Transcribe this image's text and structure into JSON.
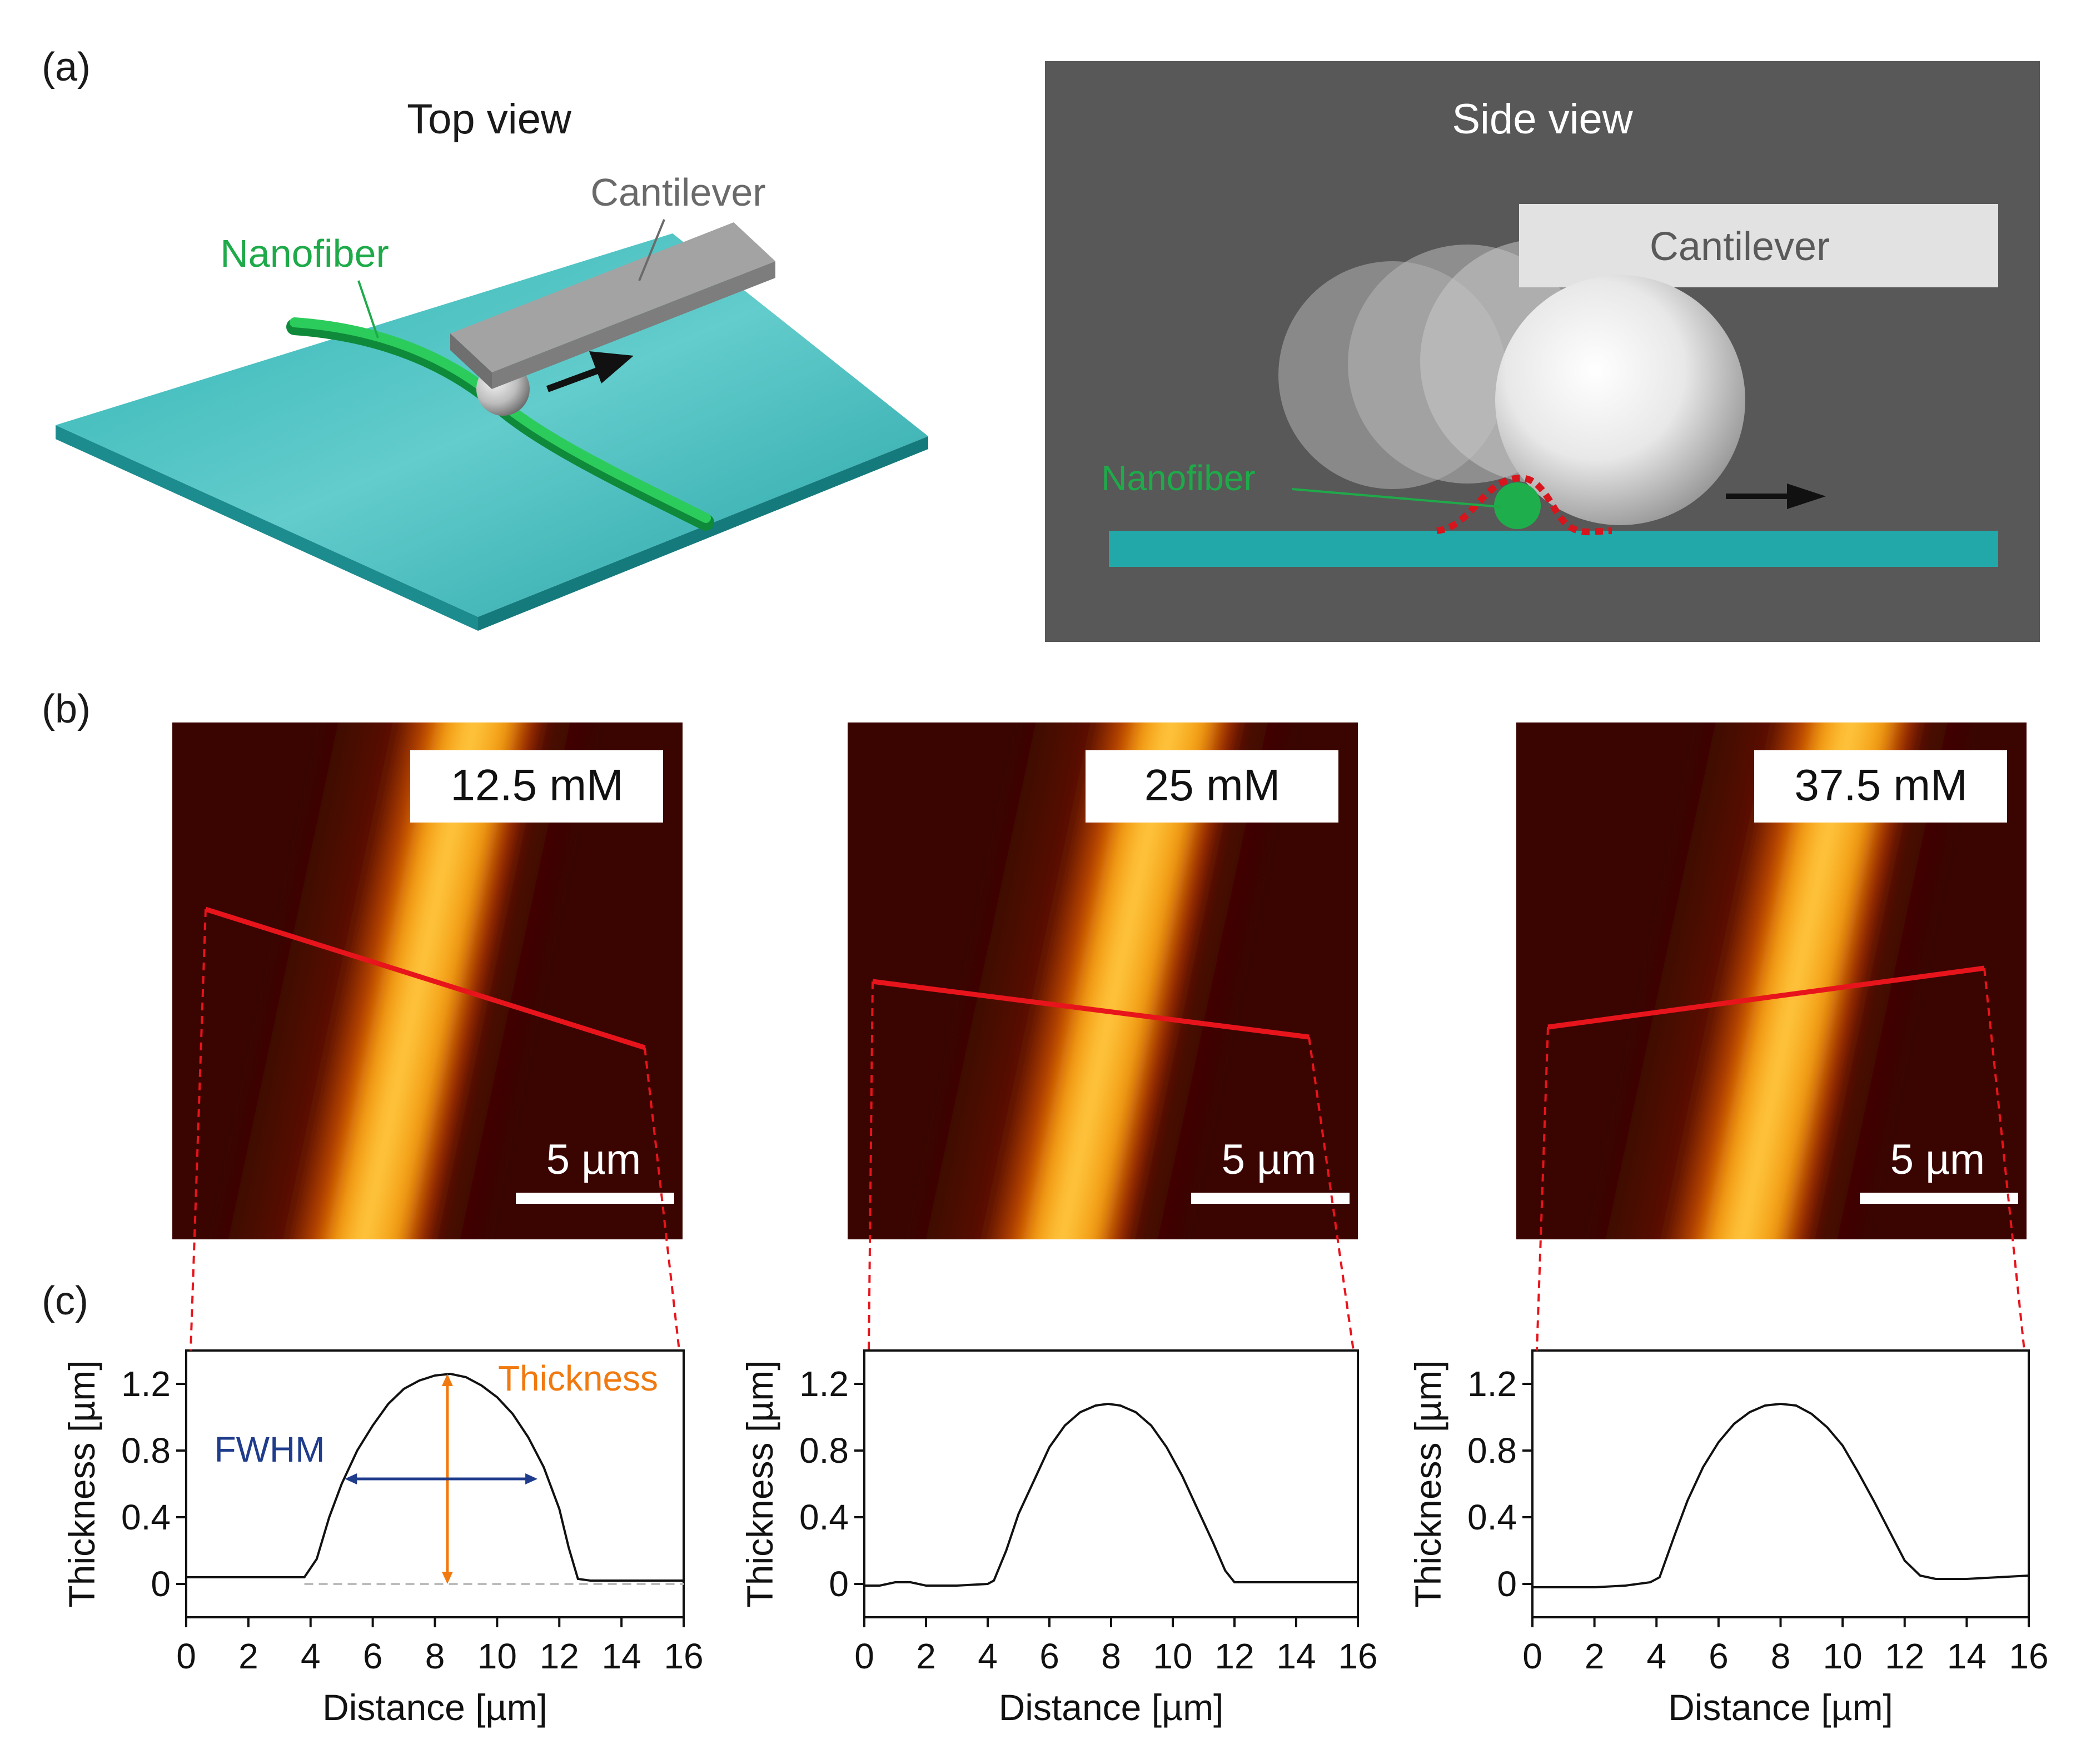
{
  "panel_labels": {
    "a": "(a)",
    "b": "(b)",
    "c": "(c)"
  },
  "panel_a": {
    "top_view": {
      "title": "Top view",
      "cantilever_label": "Cantilever",
      "nanofiber_label": "Nanofiber"
    },
    "side_view": {
      "title": "Side view",
      "cantilever_label": "Cantilever",
      "nanofiber_label": "Nanofiber"
    }
  },
  "panel_b": {
    "images": [
      {
        "concentration": "12.5 mM",
        "scale_bar": "5 µm"
      },
      {
        "concentration": "25 mM",
        "scale_bar": "5 µm"
      },
      {
        "concentration": "37.5 mM",
        "scale_bar": "5 µm"
      }
    ]
  },
  "annotations": {
    "thickness": "Thickness",
    "fwhm": "FWHM"
  },
  "colors": {
    "substrate": "#22a8a8",
    "nanofiber": "#1fae4c",
    "cantilever": "#8c8c8c",
    "side_bg": "#5a5a5a",
    "scan_line": "#e8141c",
    "thickness_arrow": "#f07a10",
    "fwhm_arrow": "#1f3c8c"
  },
  "chart_data": [
    {
      "type": "line",
      "title": "12.5 mM",
      "xlabel": "Distance [µm]",
      "ylabel": "Thickness [µm]",
      "xlim": [
        0,
        16
      ],
      "ylim": [
        -0.2,
        1.4
      ],
      "xticks": [
        "0",
        "2",
        "4",
        "6",
        "8",
        "10",
        "12",
        "14",
        "16"
      ],
      "yticks": [
        "0",
        "0.4",
        "0.8",
        "1.2"
      ],
      "x": [
        0,
        1,
        2,
        3,
        3.8,
        4.2,
        4.6,
        5,
        5.5,
        6,
        6.5,
        7,
        7.5,
        8,
        8.5,
        9,
        9.5,
        10,
        10.5,
        11,
        11.5,
        12,
        12.3,
        12.6,
        13,
        14,
        15,
        16
      ],
      "y": [
        0.04,
        0.04,
        0.04,
        0.04,
        0.04,
        0.15,
        0.4,
        0.6,
        0.8,
        0.95,
        1.08,
        1.17,
        1.22,
        1.25,
        1.26,
        1.24,
        1.19,
        1.12,
        1.02,
        0.88,
        0.7,
        0.45,
        0.22,
        0.03,
        0.02,
        0.02,
        0.02,
        0.02
      ],
      "peak": {
        "x": 8.4,
        "y": 1.26
      },
      "fwhm": {
        "x_start": 5.1,
        "x_end": 11.3,
        "y": 0.63
      }
    },
    {
      "type": "line",
      "title": "25 mM",
      "xlabel": "Distance [µm]",
      "ylabel": "Thickness [µm]",
      "xlim": [
        0,
        16
      ],
      "ylim": [
        -0.2,
        1.4
      ],
      "xticks": [
        "0",
        "2",
        "4",
        "6",
        "8",
        "10",
        "12",
        "14",
        "16"
      ],
      "yticks": [
        "0",
        "0.4",
        "0.8",
        "1.2"
      ],
      "x": [
        0,
        0.5,
        1,
        1.5,
        2,
        3,
        4,
        4.2,
        4.6,
        5,
        5.5,
        6,
        6.5,
        7,
        7.5,
        7.9,
        8.3,
        8.8,
        9.3,
        9.8,
        10.3,
        10.8,
        11.3,
        11.7,
        12,
        13,
        14,
        15,
        16
      ],
      "y": [
        -0.01,
        -0.01,
        0.01,
        0.01,
        -0.01,
        -0.01,
        0,
        0.02,
        0.2,
        0.42,
        0.62,
        0.82,
        0.95,
        1.03,
        1.07,
        1.08,
        1.07,
        1.03,
        0.95,
        0.82,
        0.65,
        0.45,
        0.25,
        0.08,
        0.01,
        0.01,
        0.01,
        0.01,
        0.01
      ]
    },
    {
      "type": "line",
      "title": "37.5 mM",
      "xlabel": "Distance [µm]",
      "ylabel": "Thickness [µm]",
      "xlim": [
        0,
        16
      ],
      "ylim": [
        -0.2,
        1.4
      ],
      "xticks": [
        "0",
        "2",
        "4",
        "6",
        "8",
        "10",
        "12",
        "14",
        "16"
      ],
      "yticks": [
        "0",
        "0.4",
        "0.8",
        "1.2"
      ],
      "x": [
        0,
        1,
        2,
        3,
        3.8,
        4.1,
        4.6,
        5,
        5.5,
        6,
        6.5,
        7,
        7.5,
        8,
        8.5,
        9,
        9.5,
        10,
        10.5,
        11,
        11.5,
        12,
        12.5,
        13,
        14,
        15,
        16
      ],
      "y": [
        -0.02,
        -0.02,
        -0.02,
        -0.01,
        0.01,
        0.04,
        0.3,
        0.5,
        0.7,
        0.85,
        0.96,
        1.03,
        1.07,
        1.08,
        1.07,
        1.02,
        0.94,
        0.83,
        0.67,
        0.5,
        0.32,
        0.14,
        0.05,
        0.03,
        0.03,
        0.04,
        0.05
      ]
    }
  ]
}
